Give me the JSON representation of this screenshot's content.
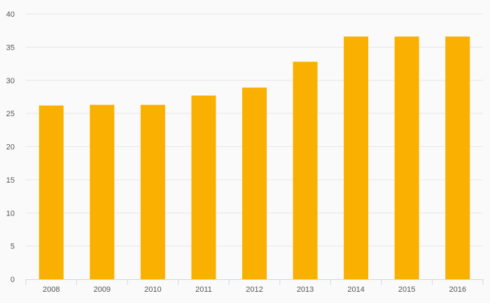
{
  "chart_data": {
    "type": "bar",
    "categories": [
      "2008",
      "2009",
      "2010",
      "2011",
      "2012",
      "2013",
      "2014",
      "2015",
      "2016"
    ],
    "values": [
      26.2,
      26.3,
      26.3,
      27.7,
      28.9,
      32.8,
      36.6,
      36.6,
      36.6
    ],
    "title": "",
    "xlabel": "",
    "ylabel": "",
    "ylim": [
      0,
      40
    ],
    "yticks": [
      0,
      5,
      10,
      15,
      20,
      25,
      30,
      35,
      40
    ],
    "grid": true,
    "legend": "none",
    "bar_color": "#f9b000"
  }
}
